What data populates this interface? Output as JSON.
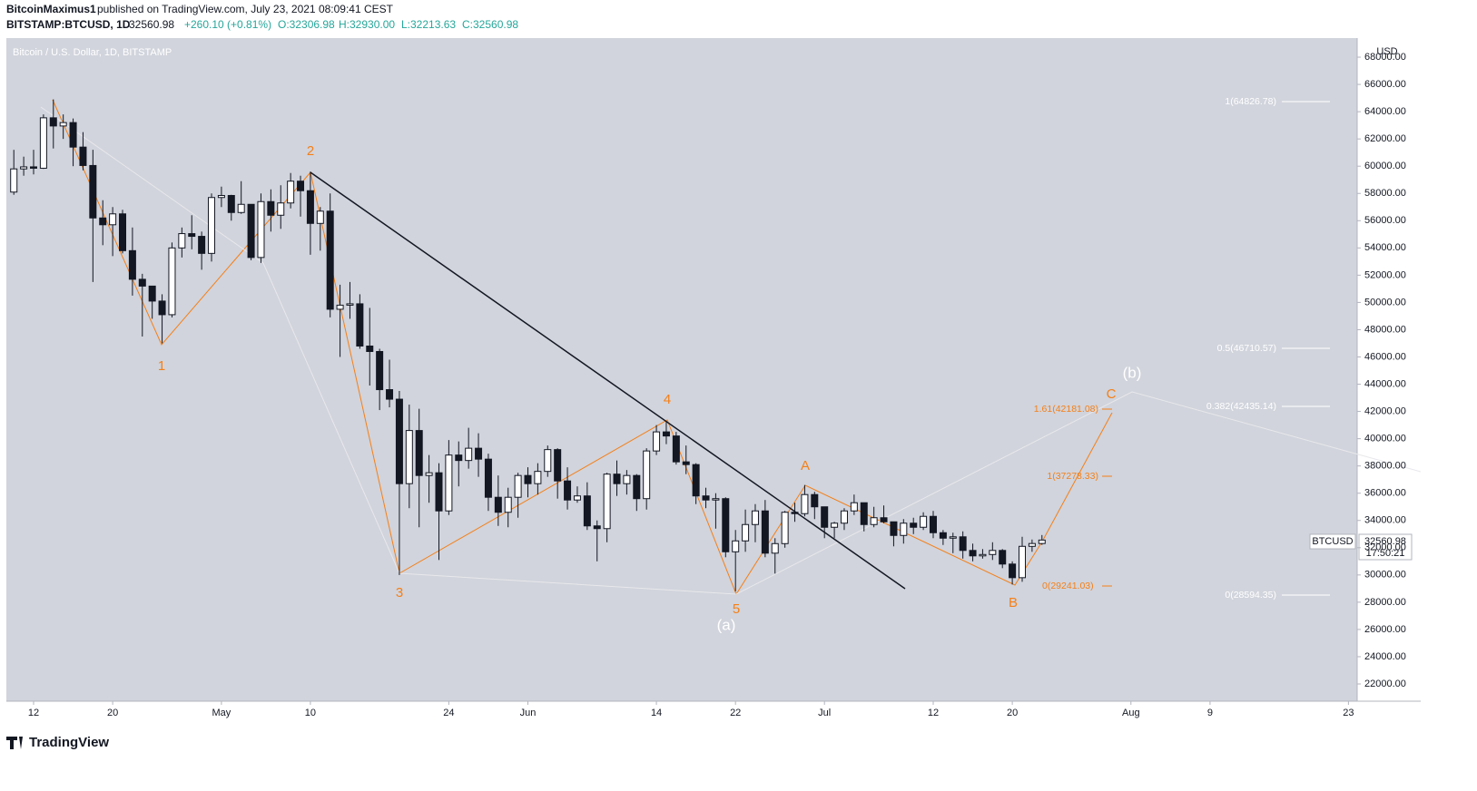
{
  "header": {
    "publisher": "BitcoinMaximus1",
    "published": "published on TradingView.com, July 23, 2021 08:09:41 CEST",
    "symbol": "BITSTAMP:BTCUSD, 1D",
    "last": "32560.98",
    "change": "+260.10 (+0.81%)",
    "open": "O:32306.98",
    "high": "H:32930.00",
    "low": "L:32213.63",
    "close": "C:32560.98"
  },
  "footer": {
    "brand": "TradingView"
  },
  "chart_data": {
    "type": "candlestick",
    "title": "Bitcoin / U.S. Dollar, 1D, BITSTAMP",
    "y_unit": "USD",
    "price_tag": "BTCUSD",
    "last_price": "32560.98",
    "countdown": "17:50:21",
    "up_color": "#ffffff",
    "down_color": "#131722",
    "background": "#d1d4dc",
    "x": [
      "2021-04-10",
      "2021-04-11",
      "2021-04-12",
      "2021-04-13",
      "2021-04-14",
      "2021-04-15",
      "2021-04-16",
      "2021-04-17",
      "2021-04-18",
      "2021-04-19",
      "2021-04-20",
      "2021-04-21",
      "2021-04-22",
      "2021-04-23",
      "2021-04-24",
      "2021-04-25",
      "2021-04-26",
      "2021-04-27",
      "2021-04-28",
      "2021-04-29",
      "2021-04-30",
      "2021-05-01",
      "2021-05-02",
      "2021-05-03",
      "2021-05-04",
      "2021-05-05",
      "2021-05-06",
      "2021-05-07",
      "2021-05-08",
      "2021-05-09",
      "2021-05-10",
      "2021-05-11",
      "2021-05-12",
      "2021-05-13",
      "2021-05-14",
      "2021-05-15",
      "2021-05-16",
      "2021-05-17",
      "2021-05-18",
      "2021-05-19",
      "2021-05-20",
      "2021-05-21",
      "2021-05-22",
      "2021-05-23",
      "2021-05-24",
      "2021-05-25",
      "2021-05-26",
      "2021-05-27",
      "2021-05-28",
      "2021-05-29",
      "2021-05-30",
      "2021-05-31",
      "2021-06-01",
      "2021-06-02",
      "2021-06-03",
      "2021-06-04",
      "2021-06-05",
      "2021-06-06",
      "2021-06-07",
      "2021-06-08",
      "2021-06-09",
      "2021-06-10",
      "2021-06-11",
      "2021-06-12",
      "2021-06-13",
      "2021-06-14",
      "2021-06-15",
      "2021-06-16",
      "2021-06-17",
      "2021-06-18",
      "2021-06-19",
      "2021-06-20",
      "2021-06-21",
      "2021-06-22",
      "2021-06-23",
      "2021-06-24",
      "2021-06-25",
      "2021-06-26",
      "2021-06-27",
      "2021-06-28",
      "2021-06-29",
      "2021-06-30",
      "2021-07-01",
      "2021-07-02",
      "2021-07-03",
      "2021-07-04",
      "2021-07-05",
      "2021-07-06",
      "2021-07-07",
      "2021-07-08",
      "2021-07-09",
      "2021-07-10",
      "2021-07-11",
      "2021-07-12",
      "2021-07-13",
      "2021-07-14",
      "2021-07-15",
      "2021-07-16",
      "2021-07-17",
      "2021-07-18",
      "2021-07-19",
      "2021-07-20",
      "2021-07-21",
      "2021-07-22",
      "2021-07-23"
    ],
    "open": [
      58100,
      59800,
      59950,
      59850,
      63550,
      62950,
      63200,
      61400,
      60050,
      56200,
      55700,
      56500,
      53800,
      51700,
      51200,
      50100,
      49100,
      54000,
      55050,
      54850,
      53600,
      57700,
      57850,
      56600,
      57200,
      53300,
      57400,
      56400,
      57300,
      58900,
      58200,
      55800,
      56700,
      49500,
      49800,
      49900,
      46800,
      46400,
      43600,
      42900,
      36700,
      40600,
      37300,
      37500,
      34700,
      38800,
      38400,
      39300,
      38500,
      35700,
      34600,
      35700,
      37300,
      36700,
      37600,
      39200,
      36900,
      35500,
      35800,
      33600,
      33400,
      37400,
      36700,
      37300,
      35600,
      39100,
      40500,
      40200,
      38300,
      38100,
      35800,
      35500,
      35600,
      31700,
      32500,
      33700,
      34700,
      31600,
      32300,
      34600,
      34500,
      35900,
      35000,
      33500,
      33800,
      34700,
      35300,
      33700,
      34200,
      33900,
      32900,
      33800,
      33500,
      34300,
      33100,
      32700,
      32800,
      31800,
      31400,
      31500,
      31800,
      30800,
      29800,
      32100,
      32306.98
    ],
    "high": [
      61200,
      60700,
      61200,
      63800,
      64900,
      63800,
      63500,
      62500,
      61200,
      57500,
      57000,
      56800,
      55500,
      52100,
      51200,
      50600,
      54400,
      55500,
      56400,
      55200,
      58000,
      58500,
      57900,
      58900,
      57200,
      58000,
      58300,
      58600,
      59500,
      59300,
      59600,
      57000,
      58000,
      51300,
      51500,
      50600,
      49600,
      46600,
      45800,
      43500,
      42500,
      42200,
      38800,
      38200,
      39900,
      39800,
      40800,
      40400,
      38900,
      37300,
      36400,
      37500,
      37900,
      38200,
      39500,
      39300,
      37900,
      36500,
      36800,
      34000,
      37500,
      38400,
      37700,
      37400,
      39300,
      41000,
      41300,
      40500,
      39500,
      38200,
      36400,
      36000,
      35700,
      33300,
      34800,
      35200,
      35500,
      32700,
      34700,
      35300,
      36600,
      36100,
      35000,
      33900,
      34900,
      35900,
      35300,
      35000,
      35100,
      33900,
      34100,
      34200,
      34600,
      34700,
      33300,
      33100,
      33200,
      32300,
      31900,
      32400,
      31900,
      31000,
      32800,
      32600,
      32930
    ],
    "low": [
      57900,
      59300,
      59400,
      59800,
      61300,
      62000,
      60000,
      59700,
      51500,
      54200,
      53400,
      53600,
      50500,
      47500,
      48800,
      47000,
      48900,
      53300,
      53900,
      52400,
      53000,
      57000,
      56000,
      56500,
      53100,
      52900,
      55200,
      55400,
      56900,
      56300,
      53500,
      53800,
      48900,
      46000,
      48800,
      46600,
      43900,
      42100,
      42300,
      30000,
      34900,
      33500,
      35300,
      31100,
      34400,
      36500,
      37800,
      37200,
      34700,
      33600,
      33500,
      34200,
      35700,
      35900,
      37200,
      35600,
      34800,
      35300,
      33300,
      31000,
      32400,
      35800,
      35900,
      34700,
      34800,
      38800,
      39600,
      38100,
      37400,
      35200,
      34900,
      33400,
      31300,
      28800,
      31700,
      32400,
      31300,
      30100,
      32000,
      33900,
      34300,
      34100,
      32700,
      32700,
      33300,
      34400,
      33200,
      33500,
      33800,
      32100,
      32300,
      33000,
      33300,
      32700,
      32200,
      31600,
      31200,
      31000,
      31200,
      31100,
      30500,
      29300,
      29500,
      31700,
      32213.63
    ],
    "close": [
      59800,
      59950,
      59850,
      63550,
      62950,
      63200,
      61400,
      60050,
      56200,
      55700,
      56500,
      53800,
      51700,
      51200,
      50100,
      49100,
      54000,
      55050,
      54850,
      53600,
      57700,
      57850,
      56600,
      57200,
      53300,
      57400,
      56400,
      57300,
      58900,
      58200,
      55800,
      56700,
      49500,
      49800,
      49900,
      46800,
      46400,
      43600,
      42900,
      36700,
      40600,
      37300,
      37500,
      34700,
      38800,
      38400,
      39300,
      38500,
      35700,
      34600,
      35700,
      37300,
      36700,
      37600,
      39200,
      36900,
      35500,
      35800,
      33600,
      33400,
      37400,
      36700,
      37300,
      35600,
      39100,
      40500,
      40200,
      38300,
      38100,
      35800,
      35500,
      35600,
      31700,
      32500,
      33700,
      34700,
      31600,
      32300,
      34600,
      34500,
      35900,
      35000,
      33500,
      33800,
      34700,
      35300,
      33700,
      34200,
      33900,
      32900,
      33800,
      33500,
      34300,
      33100,
      32700,
      32800,
      31800,
      31400,
      31500,
      31800,
      30800,
      29800,
      32100,
      32306.98,
      32560.98
    ],
    "ylim": [
      20735,
      69400
    ],
    "yticks": [
      {
        "value": 22000,
        "label": "22000.00"
      },
      {
        "value": 24000,
        "label": "24000.00"
      },
      {
        "value": 26000,
        "label": "26000.00"
      },
      {
        "value": 28000,
        "label": "28000.00"
      },
      {
        "value": 30000,
        "label": "30000.00"
      },
      {
        "value": 32000,
        "label": "32000.00"
      },
      {
        "value": 34000,
        "label": "34000.00"
      },
      {
        "value": 36000,
        "label": "36000.00"
      },
      {
        "value": 38000,
        "label": "38000.00"
      },
      {
        "value": 40000,
        "label": "40000.00"
      },
      {
        "value": 42000,
        "label": "42000.00"
      },
      {
        "value": 44000,
        "label": "44000.00"
      },
      {
        "value": 46000,
        "label": "46000.00"
      },
      {
        "value": 48000,
        "label": "48000.00"
      },
      {
        "value": 50000,
        "label": "50000.00"
      },
      {
        "value": 52000,
        "label": "52000.00"
      },
      {
        "value": 54000,
        "label": "54000.00"
      },
      {
        "value": 56000,
        "label": "56000.00"
      },
      {
        "value": 58000,
        "label": "58000.00"
      },
      {
        "value": 60000,
        "label": "60000.00"
      },
      {
        "value": 62000,
        "label": "62000.00"
      },
      {
        "value": 64000,
        "label": "64000.00"
      },
      {
        "value": 66000,
        "label": "66000.00"
      },
      {
        "value": 68000,
        "label": "68000.00"
      }
    ],
    "xticks": [
      {
        "value": "2021-04-12",
        "label": "12"
      },
      {
        "value": "2021-04-20",
        "label": "20"
      },
      {
        "value": "2021-05-01",
        "label": "May"
      },
      {
        "value": "2021-05-10",
        "label": "10"
      },
      {
        "value": "2021-05-24",
        "label": "24"
      },
      {
        "value": "2021-06-01",
        "label": "Jun"
      },
      {
        "value": "2021-06-14",
        "label": "14"
      },
      {
        "value": "2021-06-22",
        "label": "22"
      },
      {
        "value": "2021-07-01",
        "label": "Jul"
      },
      {
        "value": "2021-07-12",
        "label": "12"
      },
      {
        "value": "2021-07-20",
        "label": "20"
      },
      {
        "value": "2021-08-01",
        "label": "Aug"
      },
      {
        "value": "2021-08-09",
        "label": "9"
      },
      {
        "value": "2021-08-23",
        "label": "23"
      }
    ],
    "wave_labels": [
      "1",
      "2",
      "3",
      "4",
      "5",
      "(a)",
      "A",
      "B",
      "C",
      "(b)"
    ],
    "fib_white": [
      "1(64826.78)",
      "0.5(46710.57)",
      "0.382(42435.14)",
      "0(28594.35)"
    ],
    "fib_orange": [
      "1.61(42181.08)",
      "1(37278.33)",
      "0(29241.03)"
    ]
  }
}
